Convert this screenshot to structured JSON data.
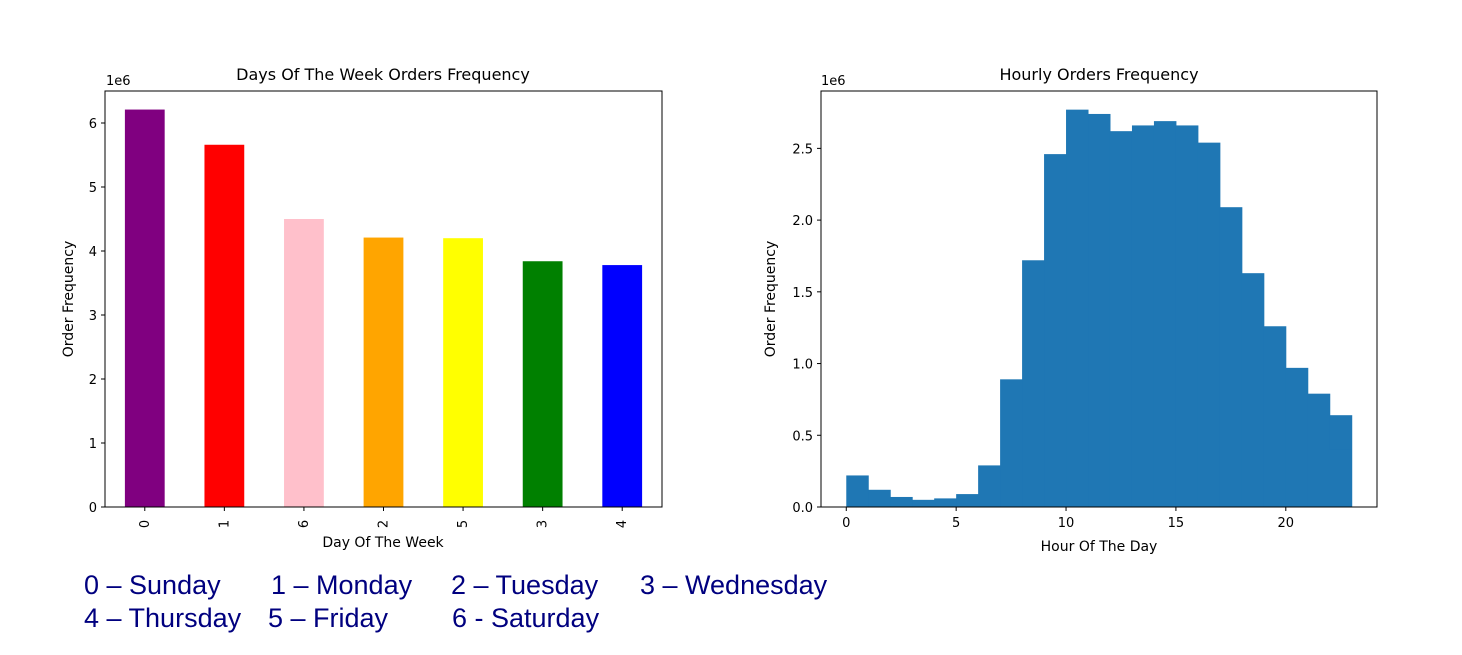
{
  "chart_data": [
    {
      "type": "bar",
      "title": "Days Of The Week Orders Frequency",
      "xlabel": "Day Of The Week",
      "ylabel": "Order Frequency",
      "y_multiplier_label": "1e6",
      "categories": [
        "0",
        "1",
        "6",
        "2",
        "5",
        "3",
        "4"
      ],
      "values": [
        6.21,
        5.66,
        4.5,
        4.21,
        4.2,
        3.84,
        3.78
      ],
      "bar_colors": [
        "#800080",
        "#ff0000",
        "#ffc0cb",
        "#ffa500",
        "#ffff00",
        "#008000",
        "#0000ff"
      ],
      "ylim": [
        0,
        6.5
      ],
      "yticks": [
        "0",
        "1",
        "2",
        "3",
        "4",
        "5",
        "6"
      ],
      "grid": false
    },
    {
      "type": "bar",
      "title": "Hourly Orders Frequency",
      "xlabel": "Hour Of The Day",
      "ylabel": "Order Frequency",
      "y_multiplier_label": "1e6",
      "x": [
        0,
        1,
        2,
        3,
        4,
        5,
        6,
        7,
        8,
        9,
        10,
        11,
        12,
        13,
        14,
        15,
        16,
        17,
        18,
        19,
        20,
        21,
        22
      ],
      "values": [
        0.22,
        0.12,
        0.07,
        0.05,
        0.06,
        0.09,
        0.29,
        0.89,
        1.72,
        2.46,
        2.77,
        2.74,
        2.62,
        2.66,
        2.69,
        2.66,
        2.54,
        2.09,
        1.63,
        1.26,
        0.97,
        0.79,
        0.64
      ],
      "last_bin": {
        "x": 21.96,
        "width": 1.04,
        "value": 0.4
      },
      "bar_color": "#1f77b4",
      "xlim": [
        -1.15,
        24.15
      ],
      "ylim": [
        0,
        2.9
      ],
      "xticks": [
        "0",
        "5",
        "10",
        "15",
        "20"
      ],
      "yticks": [
        "0.0",
        "0.5",
        "1.0",
        "1.5",
        "2.0",
        "2.5"
      ],
      "grid": false
    }
  ],
  "legend": {
    "line1": [
      "0 – Sunday",
      "1 – Monday",
      "2 – Tuesday",
      "3 – Wednesday"
    ],
    "line2": [
      "4 – Thursday",
      "5 – Friday",
      "6 - Saturday"
    ]
  }
}
